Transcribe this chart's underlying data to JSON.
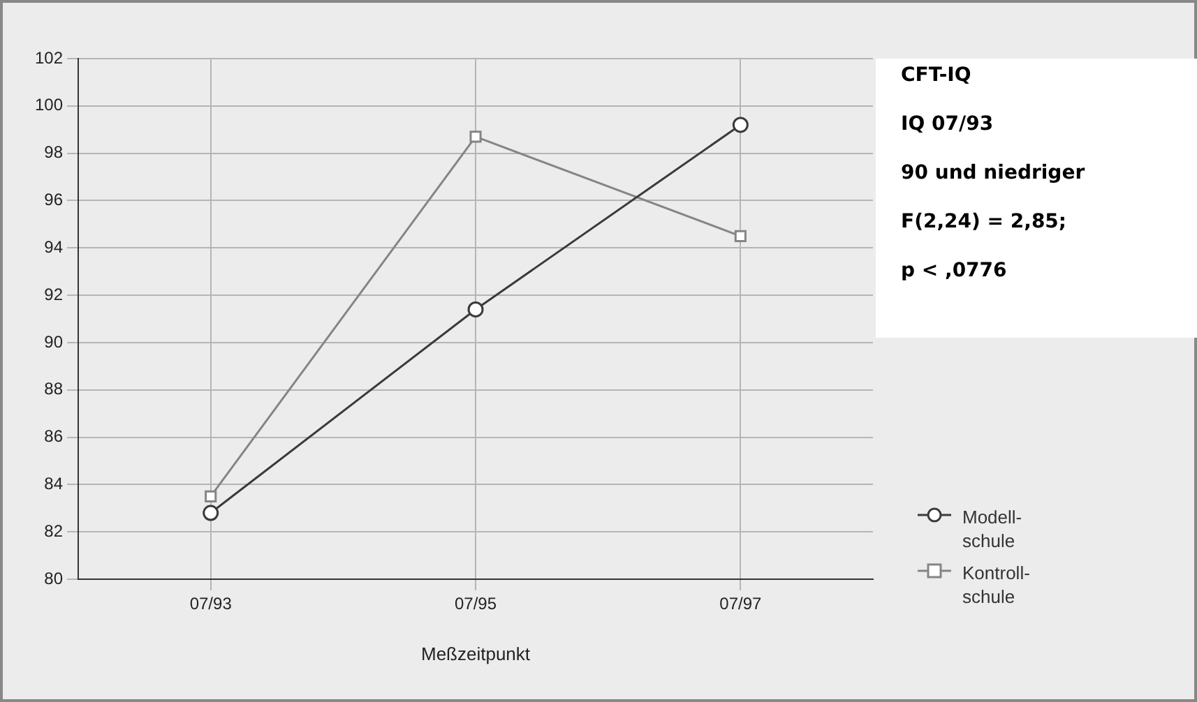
{
  "chart_data": {
    "type": "line",
    "xlabel": "Meßzeitpunkt",
    "categories": [
      "07/93",
      "07/95",
      "07/97"
    ],
    "series": [
      {
        "name": "Modell-\nschule",
        "color": "#3a3a3a",
        "values": [
          82.8,
          91.4,
          99.2
        ],
        "marker": "circle"
      },
      {
        "name": "Kontroll-\nschule",
        "color": "#858585",
        "values": [
          83.5,
          98.7,
          94.5
        ],
        "marker": "square"
      }
    ],
    "ylim": [
      80,
      102
    ],
    "yticks": [
      80,
      82,
      84,
      86,
      88,
      90,
      92,
      94,
      96,
      98,
      100,
      102
    ],
    "grid": true,
    "legend": "right",
    "line_style": "solid",
    "annotations": [
      "CFT-IQ",
      "IQ 07/93",
      "90 und niedriger",
      "F(2,24) = 2,85;",
      "p < ,0776"
    ]
  }
}
